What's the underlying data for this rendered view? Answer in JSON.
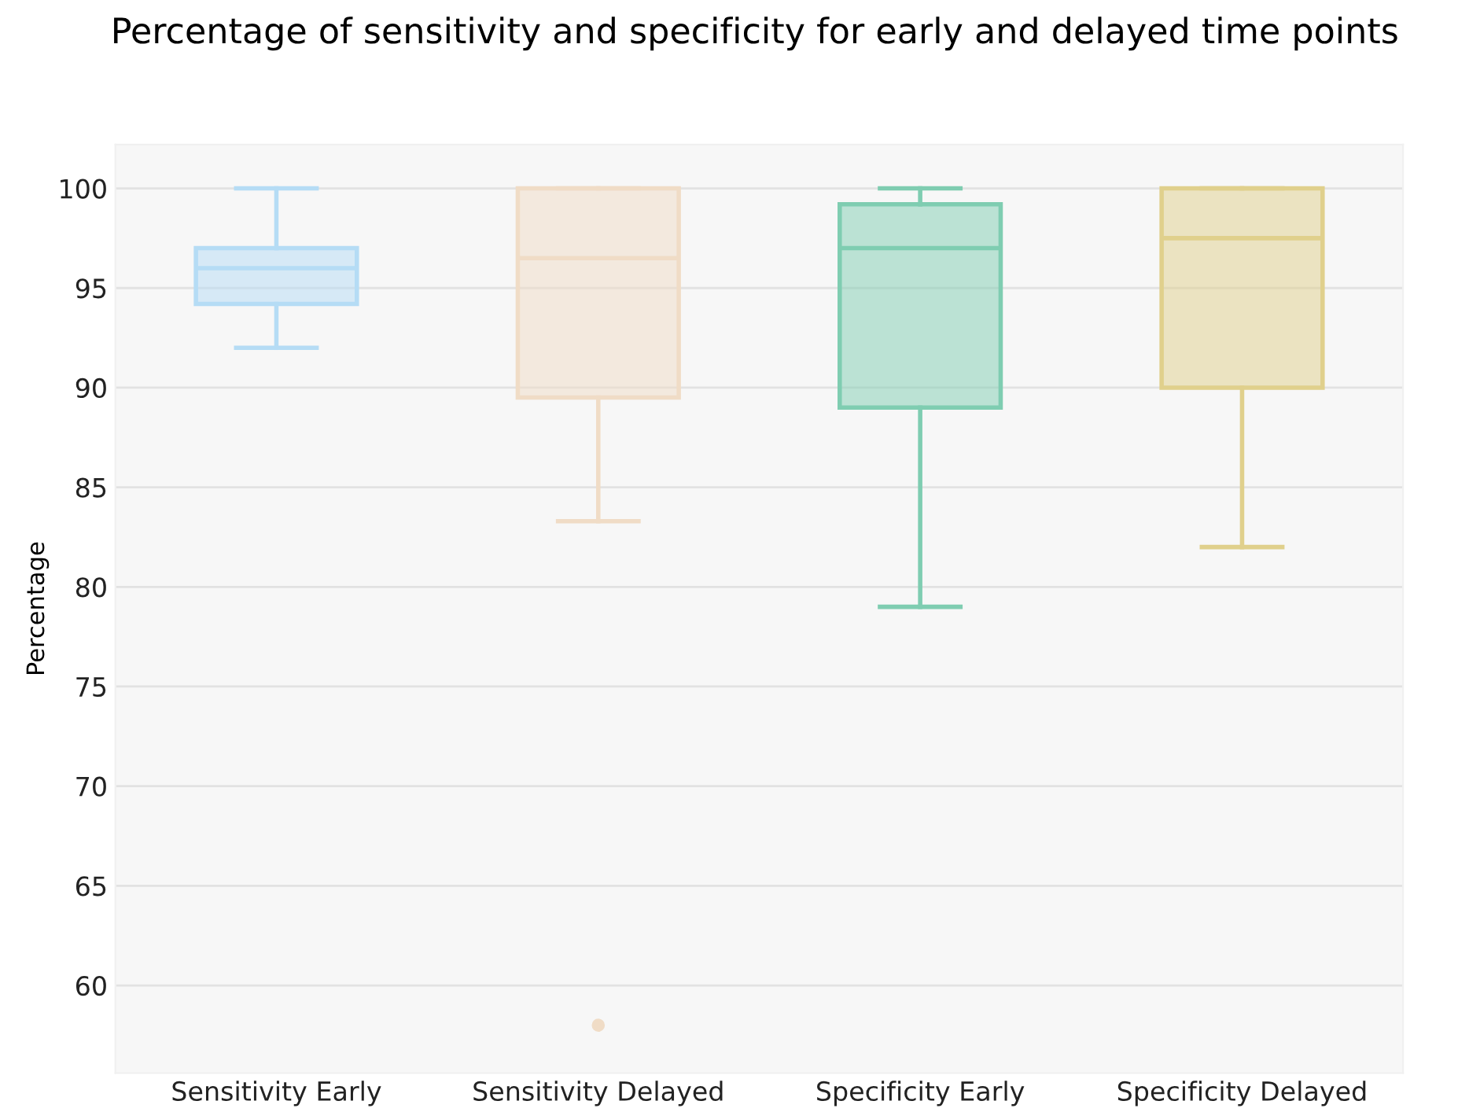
{
  "chart_data": {
    "type": "box",
    "title": "Percentage of sensitivity and specificity for early and delayed time points",
    "ylabel": "Percentage",
    "categories": [
      "Sensitivity Early",
      "Sensitivity Delayed",
      "Specificity Early",
      "Specificity Delayed"
    ],
    "boxes": [
      {
        "low": 92,
        "q1": 94.2,
        "median": 96,
        "q3": 97,
        "high": 100
      },
      {
        "low": 83.3,
        "q1": 89.5,
        "median": 96.5,
        "q3": 100,
        "high": 100,
        "outliers": [
          58
        ]
      },
      {
        "low": 79,
        "q1": 89,
        "median": 97,
        "q3": 99.2,
        "high": 100
      },
      {
        "low": 82,
        "q1": 90,
        "median": 97.5,
        "q3": 100,
        "high": 100
      }
    ],
    "colors": [
      "#b5dcf5",
      "#f0dcc6",
      "#7fcdb1",
      "#e0d08c"
    ],
    "ylim": [
      55.6,
      102.2
    ],
    "yticks": [
      60,
      65,
      70,
      75,
      80,
      85,
      90,
      95,
      100
    ],
    "grid": "y"
  }
}
